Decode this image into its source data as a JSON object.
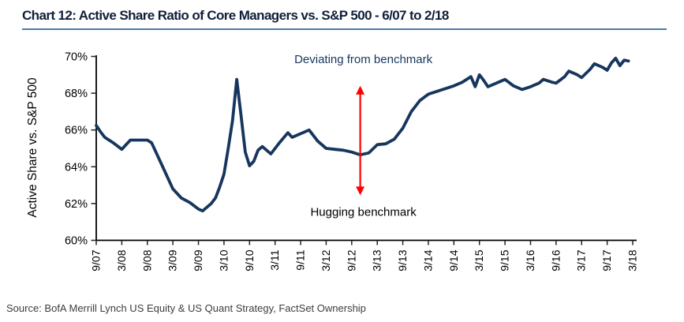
{
  "title": "Chart 12: Active Share Ratio of Core Managers vs. S&P 500 - 6/07 to 2/18",
  "source": "Source: BofA Merrill Lynch US Equity & US Quant Strategy, FactSet Ownership",
  "colors": {
    "line": "#17365d",
    "title_text": "#101f38",
    "title_underline": "#4a7aad",
    "arrow": "#ff0000",
    "axis": "#000000",
    "tick_label": "#000000",
    "deviating_text": "#17365d",
    "hugging_text": "#000000",
    "source_text": "#3d3d3d"
  },
  "chart_data": {
    "type": "line",
    "title": "Chart 12: Active Share Ratio of Core Managers vs. S&P 500 - 6/07 to 2/18",
    "xlabel": "",
    "ylabel": "Active Share vs. S&P 500",
    "ylim": [
      60,
      70
    ],
    "grid": false,
    "legend": "none",
    "y_ticks": [
      "60%",
      "62%",
      "64%",
      "66%",
      "68%",
      "70%"
    ],
    "y_tick_values": [
      60,
      62,
      64,
      66,
      68,
      70
    ],
    "x_ticks": [
      "9/07",
      "3/08",
      "9/08",
      "3/09",
      "9/09",
      "3/10",
      "9/10",
      "3/11",
      "9/11",
      "3/12",
      "9/12",
      "3/13",
      "9/13",
      "3/14",
      "9/14",
      "3/15",
      "9/15",
      "3/16",
      "9/16",
      "3/17",
      "9/17",
      "3/18"
    ],
    "x_tick_months": [
      0,
      6,
      12,
      18,
      24,
      30,
      36,
      42,
      48,
      54,
      60,
      66,
      72,
      78,
      84,
      90,
      96,
      102,
      108,
      114,
      120,
      126
    ],
    "x_range_months": 126,
    "series": [
      {
        "name": "Active Share Ratio of Core Managers vs. S&P 500",
        "dates": [
          "9/07",
          "10/07",
          "11/07",
          "1/08",
          "3/08",
          "4/08",
          "5/08",
          "9/08",
          "10/08",
          "12/08",
          "3/09",
          "5/09",
          "7/09",
          "9/09",
          "10/09",
          "11/09",
          "12/09",
          "1/10",
          "2/10",
          "3/10",
          "4/10",
          "5/10",
          "6/10",
          "7/10",
          "8/10",
          "9/10",
          "10/10",
          "11/10",
          "12/10",
          "1/11",
          "2/11",
          "4/11",
          "6/11",
          "7/11",
          "9/11",
          "11/11",
          "1/12",
          "3/12",
          "5/12",
          "7/12",
          "9/12",
          "11/12",
          "1/13",
          "3/13",
          "5/13",
          "7/13",
          "9/13",
          "11/13",
          "1/14",
          "3/14",
          "5/14",
          "7/14",
          "9/14",
          "11/14",
          "12/14",
          "1/15",
          "2/15",
          "3/15",
          "4/15",
          "5/15",
          "7/15",
          "9/15",
          "11/15",
          "1/16",
          "3/16",
          "5/16",
          "6/16",
          "8/16",
          "9/16",
          "11/16",
          "12/16",
          "2/17",
          "3/17",
          "5/17",
          "6/17",
          "8/17",
          "9/17",
          "10/17",
          "11/17",
          "12/17",
          "1/18",
          "2/18"
        ],
        "months": [
          0,
          1,
          2,
          4,
          6,
          7,
          8,
          12,
          13,
          15,
          18,
          20,
          22,
          24,
          25,
          26,
          27,
          28,
          29,
          30,
          31,
          32,
          33,
          34,
          35,
          36,
          37,
          38,
          39,
          40,
          41,
          43,
          45,
          46,
          48,
          50,
          52,
          54,
          56,
          58,
          60,
          62,
          64,
          66,
          68,
          70,
          72,
          74,
          76,
          78,
          80,
          82,
          84,
          86,
          87,
          88,
          89,
          90,
          91,
          92,
          94,
          96,
          98,
          100,
          102,
          104,
          105,
          107,
          108,
          110,
          111,
          113,
          114,
          116,
          117,
          119,
          120,
          121,
          122,
          123,
          124,
          125
        ],
        "values": [
          66.25,
          65.9,
          65.6,
          65.3,
          64.95,
          65.2,
          65.45,
          65.45,
          65.3,
          64.3,
          62.8,
          62.3,
          62.05,
          61.7,
          61.6,
          61.8,
          62.0,
          62.3,
          62.9,
          63.6,
          65.0,
          66.5,
          68.75,
          66.8,
          64.8,
          64.05,
          64.3,
          64.9,
          65.1,
          64.9,
          64.7,
          65.3,
          65.85,
          65.6,
          65.8,
          66.0,
          65.4,
          65.0,
          64.95,
          64.9,
          64.8,
          64.65,
          64.75,
          65.2,
          65.25,
          65.5,
          66.1,
          67.0,
          67.6,
          67.95,
          68.1,
          68.25,
          68.4,
          68.6,
          68.75,
          68.9,
          68.35,
          69.0,
          68.7,
          68.35,
          68.55,
          68.75,
          68.4,
          68.2,
          68.35,
          68.55,
          68.75,
          68.6,
          68.55,
          68.9,
          69.2,
          69.0,
          68.85,
          69.3,
          69.6,
          69.4,
          69.25,
          69.65,
          69.9,
          69.5,
          69.8,
          69.75
        ]
      }
    ],
    "annotations": {
      "deviating": {
        "text": "Deviating from benchmark"
      },
      "hugging": {
        "text": "Hugging benchmark"
      },
      "arrow": {
        "type": "vertical-double-arrow",
        "x_month": 62,
        "top_value": 68.4,
        "bottom_value": 62.45
      }
    }
  }
}
